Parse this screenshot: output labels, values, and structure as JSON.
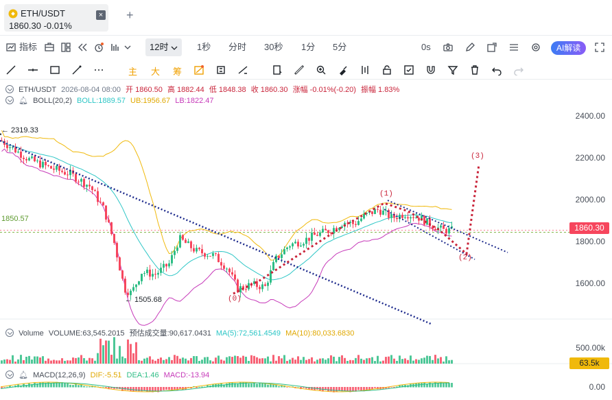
{
  "tab": {
    "symbol": "ETH/USDT",
    "price_line": "1860.30  -0.01%",
    "close_icon": "close-icon"
  },
  "toolbar1": {
    "indicators_label": "指标",
    "timeframe_active": "12时",
    "timeframes": [
      "1秒",
      "分时",
      "30秒",
      "1分",
      "5分"
    ],
    "zero_s_label": "0s",
    "ai_label": "AI解读"
  },
  "toolbar2": {
    "main_label": "主",
    "big_label": "大",
    "chip_label": "筹"
  },
  "ohlc": {
    "pair": "ETH/USDT",
    "date": "2026-08-04 08:00",
    "open": "开 1860.50",
    "high": "高 1882.44",
    "low": "低 1848.38",
    "close": "收 1860.30",
    "change": "涨幅 -0.01%(-0.20)",
    "amplitude": "振幅 1.83%"
  },
  "boll": {
    "label": "BOLL(20,2)",
    "mid": "BOLL:1889.57",
    "ub": "UB:1956.67",
    "lb": "LB:1822.47"
  },
  "volume": {
    "label": "Volume",
    "value": "VOLUME:63,545.2015",
    "estimated": "预估成交量:90,617.0431",
    "ma5": "MA(5):72,561.4549",
    "ma10": "MA(10):80,033.6830",
    "axis_top": "500.00k",
    "current_tag": "63.5k"
  },
  "macd": {
    "label": "MACD(12,26,9)",
    "dif": "DIF:-5.51",
    "dea": "DEA:1.46",
    "macd": "MACD:-13.94",
    "axis_zero": "0.00"
  },
  "price_axis": [
    "2400.00",
    "2200.00",
    "2000.00",
    "1800.00",
    "1600.00"
  ],
  "markers": {
    "high_mark": "← 2319.33",
    "low_mark": "← 1505.68",
    "ref_price": "1850.57",
    "current_price": "1860.30"
  },
  "wave_labels": [
    "(0)",
    "(1)",
    "(2)",
    "(3)"
  ],
  "colors": {
    "up": "#2ebd85",
    "down": "#f6465d",
    "boll_mid": "#2dc6c6",
    "boll_ub": "#f0b90b",
    "boll_lb": "#c639b9",
    "trend_line": "#1d2a8c",
    "wave": "#c9243a",
    "dif": "#f0b90b",
    "dea": "#2ebd85",
    "macd_text": "#c639b9",
    "ref": "#7cb342"
  }
}
